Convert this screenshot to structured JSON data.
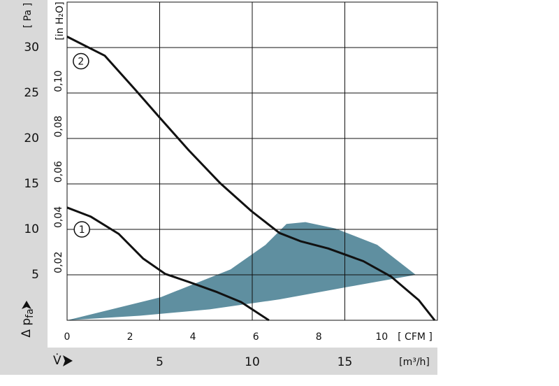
{
  "chart_data": {
    "type": "line",
    "x_unit": "[m³/h]",
    "y_unit": "[ Pa ]",
    "x2_unit": "[ CFM ]",
    "y2_unit": "[in H₂O]",
    "y_label": {
      "main": "Δ p",
      "sub": "fa"
    },
    "x_label": "V̇",
    "xlim": [
      0,
      20
    ],
    "xticks": [
      5,
      10,
      15
    ],
    "ylim": [
      0,
      35
    ],
    "yticks": [
      5,
      10,
      15,
      20,
      25,
      30
    ],
    "x2lim": [
      0,
      11.77
    ],
    "x2ticks": [
      0,
      2,
      4,
      6,
      8,
      10
    ],
    "y2lim": [
      0,
      0.1405
    ],
    "y2ticks": [
      {
        "value": 0.02,
        "label": "0,02"
      },
      {
        "value": 0.04,
        "label": "0,04"
      },
      {
        "value": 0.06,
        "label": "0,06"
      },
      {
        "value": 0.08,
        "label": "0,08"
      },
      {
        "value": 0.1,
        "label": "0,10"
      }
    ],
    "grid": true,
    "region": {
      "color": "#5f8fa0",
      "x": [
        0,
        5.06,
        8.83,
        10.72,
        11.85,
        12.87,
        14.49,
        16.75,
        18.83,
        15.25,
        11.47,
        7.7,
        3.92
      ],
      "y": [
        0,
        2.54,
        5.6,
        8.3,
        10.6,
        10.8,
        10.1,
        8.3,
        5.0,
        3.7,
        2.3,
        1.2,
        0.5
      ]
    },
    "series": [
      {
        "name": "1",
        "color": "#111111",
        "x": [
          0,
          1.28,
          2.79,
          4.1,
          5.3,
          6.6,
          8.1,
          9.4,
          10.3,
          10.9
        ],
        "y": [
          12.4,
          11.4,
          9.5,
          6.8,
          5.1,
          4.2,
          3.1,
          2.0,
          0.8,
          0
        ]
      },
      {
        "name": "2",
        "color": "#111111",
        "x": [
          0,
          2.04,
          3.58,
          5.0,
          6.57,
          8.26,
          9.96,
          11.47,
          12.6,
          14.1,
          16.0,
          17.5,
          19.0,
          19.85
        ],
        "y": [
          31.2,
          29.1,
          25.6,
          22.3,
          18.7,
          15.1,
          12.0,
          9.6,
          8.7,
          7.9,
          6.5,
          4.8,
          2.2,
          0
        ]
      }
    ],
    "label_pos": [
      {
        "x": 0.8,
        "y": 10
      },
      {
        "x": 0.75,
        "y": 28.5
      }
    ]
  }
}
